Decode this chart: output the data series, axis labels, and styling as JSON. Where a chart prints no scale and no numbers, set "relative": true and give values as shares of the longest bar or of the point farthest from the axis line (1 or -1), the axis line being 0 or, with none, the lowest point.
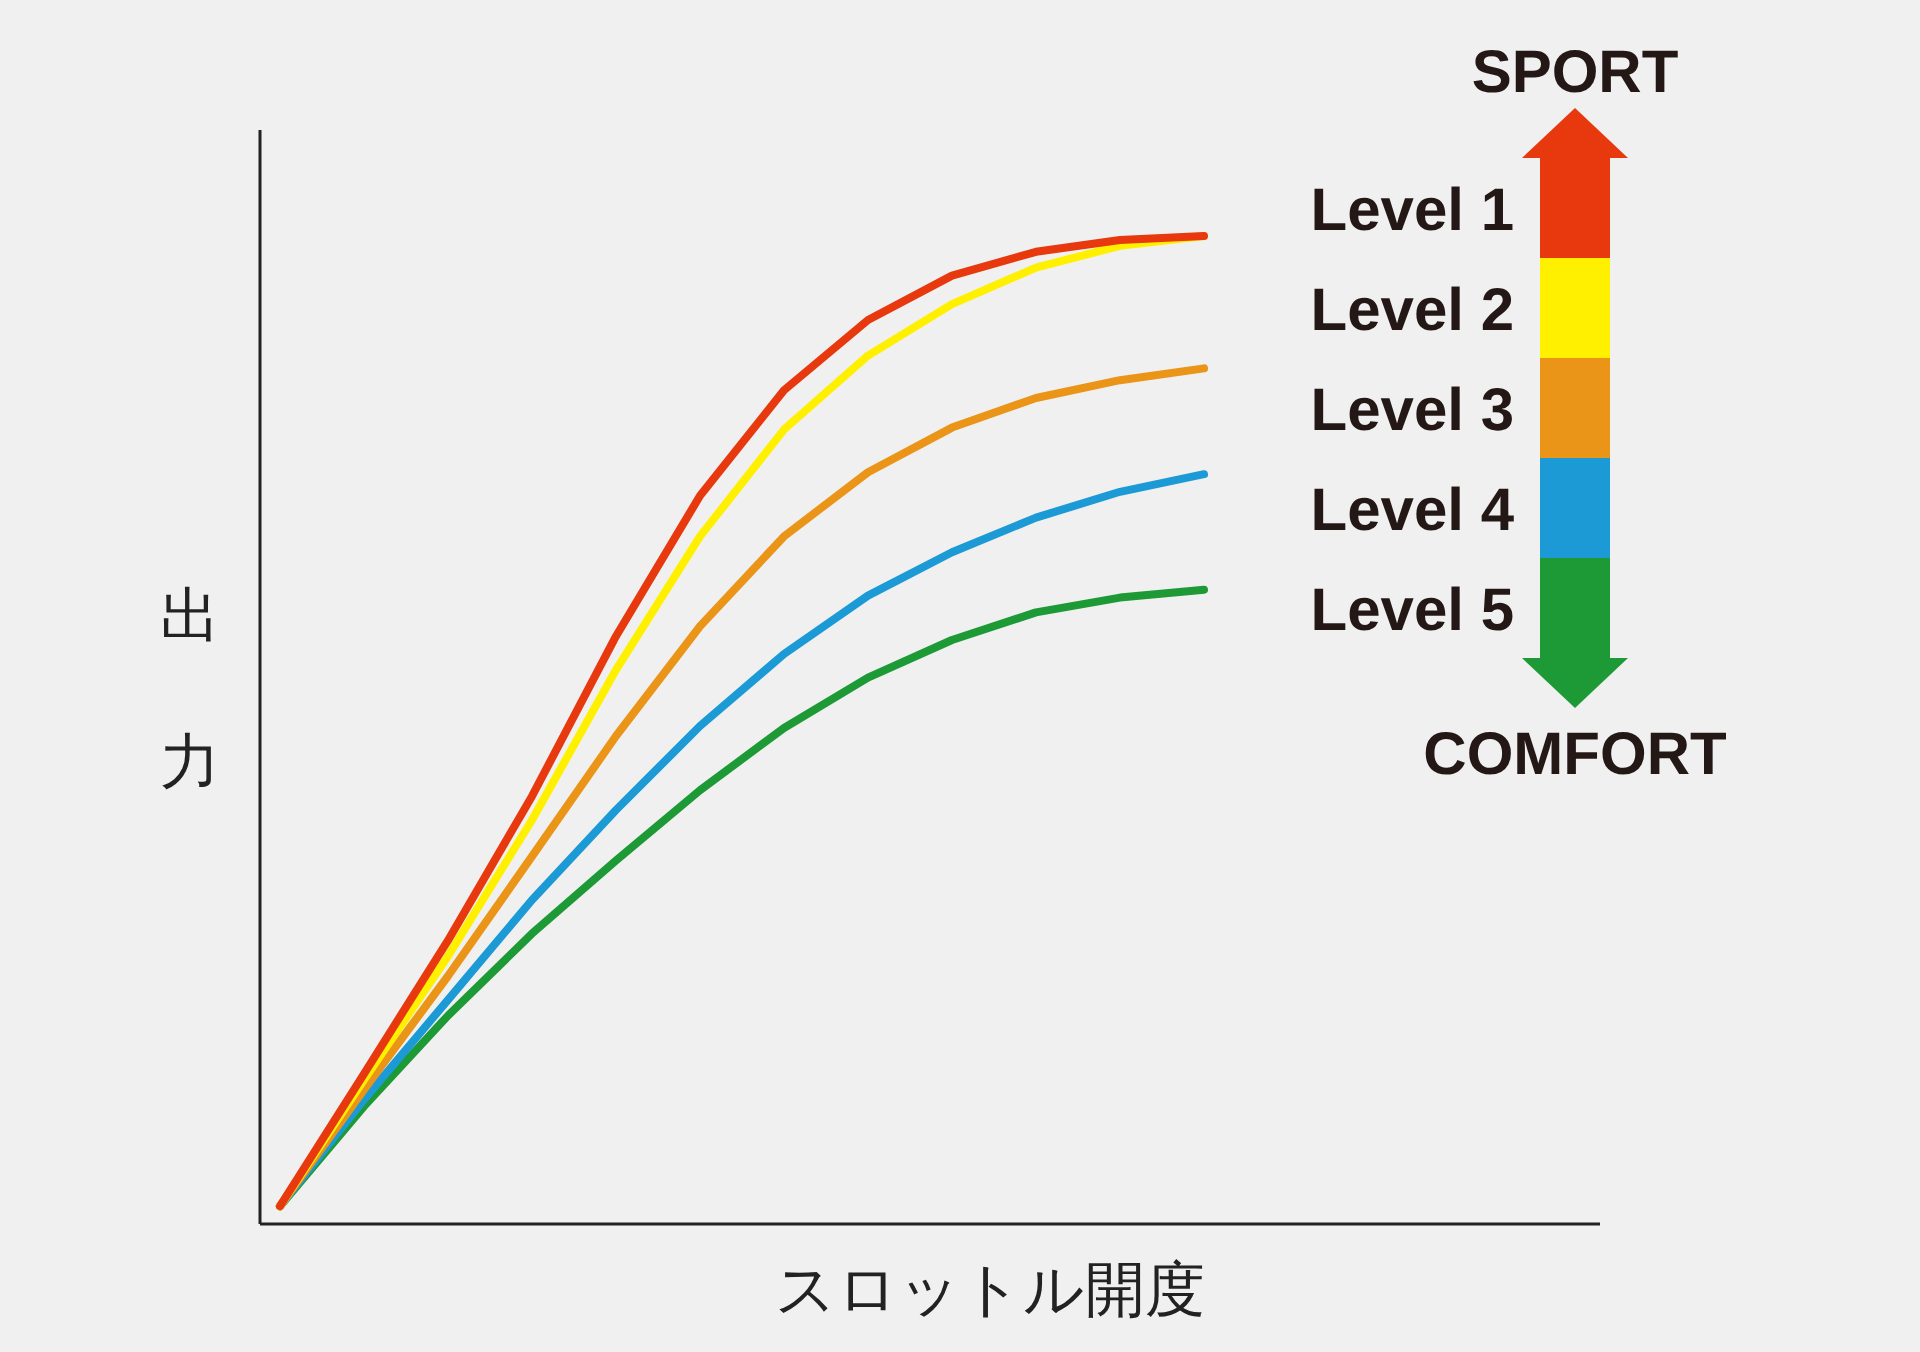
{
  "chart_data": {
    "type": "line",
    "relative": true,
    "xlabel": "スロットル開度",
    "ylabel": "出力",
    "legend": "right",
    "annotations": [
      "SPORT",
      "COMFORT"
    ],
    "categories": [
      null,
      null,
      null,
      null,
      null,
      null,
      null,
      null,
      null,
      null,
      null,
      null
    ],
    "series": [
      {
        "name": "Level 1",
        "color": "#e8380d",
        "values": [
          0.018,
          0.152,
          0.287,
          0.433,
          0.595,
          0.737,
          0.844,
          0.915,
          0.96,
          0.984,
          0.996,
          1
        ]
      },
      {
        "name": "Level 2",
        "color": "#fff000",
        "values": [
          0.018,
          0.146,
          0.271,
          0.409,
          0.561,
          0.696,
          0.804,
          0.879,
          0.931,
          0.968,
          0.99,
          1
        ]
      },
      {
        "name": "Level 3",
        "color": "#ea9418",
        "values": [
          0.018,
          0.136,
          0.251,
          0.372,
          0.494,
          0.605,
          0.696,
          0.761,
          0.806,
          0.836,
          0.854,
          0.866
        ]
      },
      {
        "name": "Level 4",
        "color": "#1b9ad6",
        "values": [
          0.018,
          0.126,
          0.227,
          0.328,
          0.419,
          0.504,
          0.577,
          0.636,
          0.68,
          0.715,
          0.741,
          0.759
        ]
      },
      {
        "name": "Level 5",
        "color": "#1d9a36",
        "values": [
          0.018,
          0.119,
          0.211,
          0.294,
          0.368,
          0.439,
          0.502,
          0.553,
          0.591,
          0.619,
          0.634,
          0.642
        ]
      }
    ]
  }
}
